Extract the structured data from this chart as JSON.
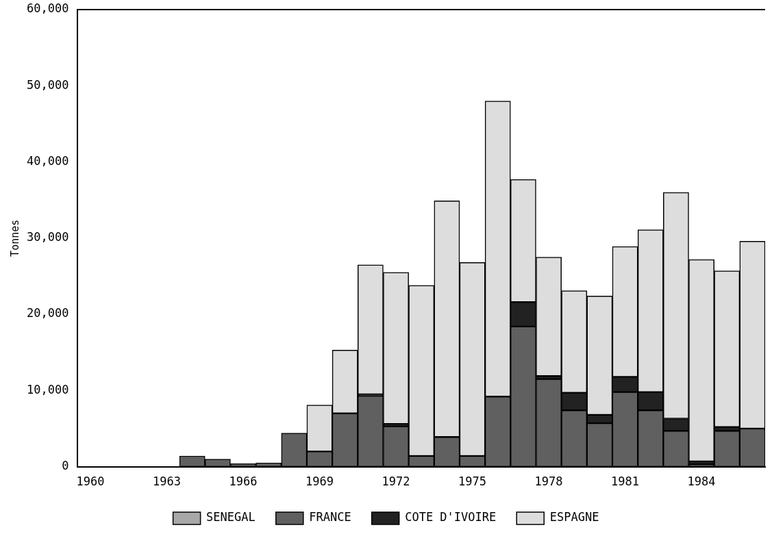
{
  "chart_data": {
    "type": "bar",
    "stacked": true,
    "ylabel": "Tonnes",
    "categories": [
      "1960",
      null,
      null,
      "1963",
      null,
      null,
      "1966",
      null,
      null,
      "1969",
      null,
      null,
      "1972",
      null,
      null,
      "1975",
      null,
      null,
      "1978",
      null,
      null,
      "1981",
      null,
      null,
      "1984",
      null,
      null
    ],
    "series": [
      {
        "name": "SENEGAL",
        "color": "#a8a8a8",
        "values": [
          0,
          0,
          0,
          0,
          0,
          0,
          0,
          0,
          0,
          0,
          0,
          0,
          0,
          0,
          0,
          0,
          0,
          0,
          0,
          0,
          0,
          0,
          0,
          0,
          null,
          0,
          0
        ]
      },
      {
        "name": "FRANCE",
        "color": "#606060",
        "values": [
          0,
          0,
          0,
          0,
          1400,
          1000,
          400,
          500,
          4400,
          2000,
          7000,
          9300,
          5300,
          1400,
          3900,
          1400,
          9200,
          18400,
          11500,
          7400,
          5700,
          9800,
          7400,
          4700,
          300,
          4700,
          5000
        ]
      },
      {
        "name": "COTE D'IVOIRE",
        "color": "#222222",
        "values": [
          0,
          0,
          0,
          0,
          0,
          0,
          0,
          0,
          0,
          0,
          0,
          200,
          300,
          0,
          0,
          0,
          0,
          3200,
          400,
          2300,
          1100,
          2000,
          2400,
          1600,
          400,
          500,
          0
        ]
      },
      {
        "name": "ESPAGNE",
        "color": "#dddddd",
        "values": [
          0,
          0,
          0,
          0,
          0,
          0,
          0,
          0,
          0,
          6100,
          8300,
          17000,
          19900,
          22400,
          31000,
          25400,
          38800,
          16100,
          15600,
          13400,
          15600,
          17100,
          21300,
          29700,
          26500,
          20500,
          24600
        ]
      }
    ],
    "ylim": [
      0,
      60000
    ],
    "yticks": [
      {
        "value": 0,
        "label": "0"
      },
      {
        "value": 10000,
        "label": "10,000"
      },
      {
        "value": 20000,
        "label": "20,000"
      },
      {
        "value": 30000,
        "label": "30,000"
      },
      {
        "value": 40000,
        "label": "40,000"
      },
      {
        "value": 50000,
        "label": "50,000"
      },
      {
        "value": 60000,
        "label": "60,000"
      }
    ],
    "legend": "bottom"
  }
}
